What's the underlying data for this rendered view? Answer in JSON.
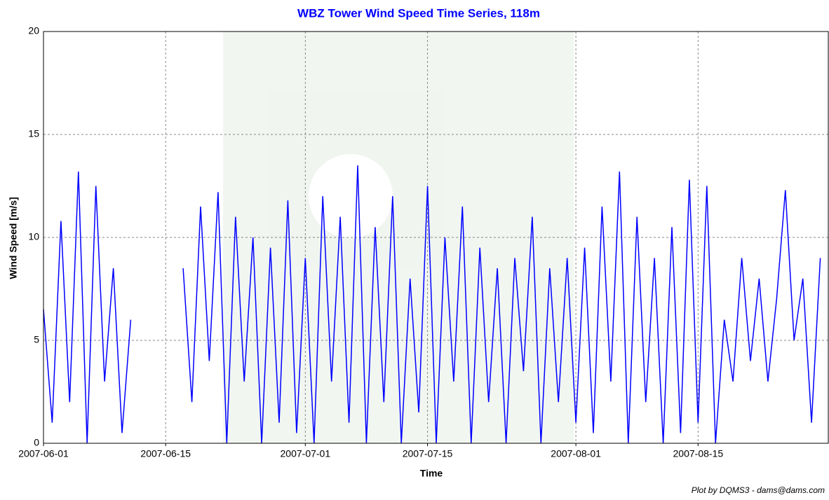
{
  "chart_data": {
    "type": "line",
    "title": "WBZ Tower Wind Speed Time Series, 118m",
    "xlabel": "Time",
    "ylabel": "Wind Speed [m/s]",
    "footnote": "Plot by DQMS3 - dams@dams.com",
    "xlim": [
      "2007-06-01",
      "2007-08-30"
    ],
    "xticks": [
      "2007-06-01",
      "2007-06-15",
      "2007-07-01",
      "2007-07-15",
      "2007-08-01",
      "2007-08-15"
    ],
    "ylim": [
      0,
      20
    ],
    "yticks": [
      0,
      5,
      10,
      15,
      20
    ],
    "grid": true,
    "x": [
      "2007-06-01",
      "2007-06-02",
      "2007-06-03",
      "2007-06-04",
      "2007-06-05",
      "2007-06-06",
      "2007-06-07",
      "2007-06-08",
      "2007-06-09",
      "2007-06-10",
      "2007-06-11",
      "2007-06-12",
      "2007-06-13",
      "2007-06-14",
      "2007-06-15",
      "2007-06-16",
      "2007-06-17",
      "2007-06-18",
      "2007-06-19",
      "2007-06-20",
      "2007-06-21",
      "2007-06-22",
      "2007-06-23",
      "2007-06-24",
      "2007-06-25",
      "2007-06-26",
      "2007-06-27",
      "2007-06-28",
      "2007-06-29",
      "2007-06-30",
      "2007-07-01",
      "2007-07-02",
      "2007-07-03",
      "2007-07-04",
      "2007-07-05",
      "2007-07-06",
      "2007-07-07",
      "2007-07-08",
      "2007-07-09",
      "2007-07-10",
      "2007-07-11",
      "2007-07-12",
      "2007-07-13",
      "2007-07-14",
      "2007-07-15",
      "2007-07-16",
      "2007-07-17",
      "2007-07-18",
      "2007-07-19",
      "2007-07-20",
      "2007-07-21",
      "2007-07-22",
      "2007-07-23",
      "2007-07-24",
      "2007-07-25",
      "2007-07-26",
      "2007-07-27",
      "2007-07-28",
      "2007-07-29",
      "2007-07-30",
      "2007-07-31",
      "2007-08-01",
      "2007-08-02",
      "2007-08-03",
      "2007-08-04",
      "2007-08-05",
      "2007-08-06",
      "2007-08-07",
      "2007-08-08",
      "2007-08-09",
      "2007-08-10",
      "2007-08-11",
      "2007-08-12",
      "2007-08-13",
      "2007-08-14",
      "2007-08-15",
      "2007-08-16",
      "2007-08-17",
      "2007-08-18",
      "2007-08-19",
      "2007-08-20",
      "2007-08-21",
      "2007-08-22",
      "2007-08-23",
      "2007-08-24",
      "2007-08-25",
      "2007-08-26",
      "2007-08-27",
      "2007-08-28",
      "2007-08-29"
    ],
    "series": [
      {
        "color": "#0000ff",
        "values": [
          6.5,
          1,
          10.8,
          2,
          13.2,
          0,
          12.5,
          3,
          8.5,
          0.5,
          6,
          null,
          null,
          null,
          null,
          null,
          8.5,
          2,
          11.5,
          4,
          12.2,
          0,
          11,
          3,
          10,
          0,
          9.5,
          1,
          11.8,
          0.5,
          9,
          0,
          12,
          3,
          11,
          1,
          13.5,
          0,
          10.5,
          2,
          12,
          0,
          8,
          1.5,
          12.5,
          0,
          10,
          3,
          11.5,
          0,
          9.5,
          2,
          8.5,
          0,
          9,
          3.5,
          11,
          0,
          8.5,
          2,
          9,
          1,
          9.5,
          0.5,
          11.5,
          3,
          13.2,
          0,
          11,
          2,
          9,
          0,
          10.5,
          0.5,
          12.8,
          1,
          12.5,
          0,
          6,
          3,
          9,
          4,
          8,
          3,
          7,
          12.3,
          5,
          8,
          1,
          9
        ]
      }
    ]
  }
}
